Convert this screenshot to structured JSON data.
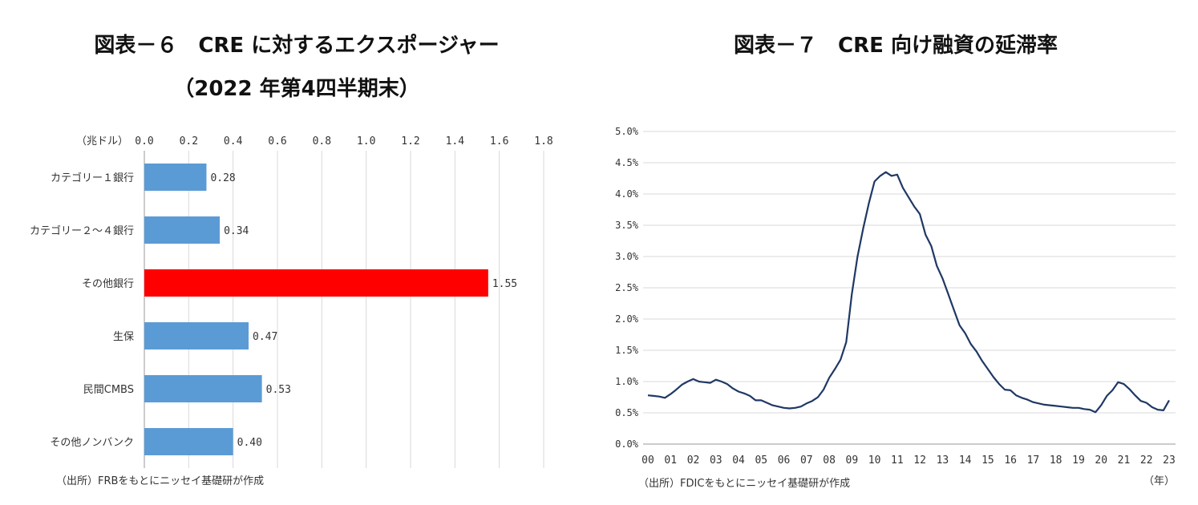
{
  "chart_data": [
    {
      "type": "bar",
      "orientation": "horizontal",
      "title": "図表－６　CRE に対するエクスポージャー",
      "subtitle": "（2022 年第4四半期末）",
      "unit_label": "（兆ドル）",
      "source": "（出所）FRBをもとにニッセイ基礎研が作成",
      "categories": [
        "カテゴリー１銀行",
        "カテゴリー２～４銀行",
        "その他銀行",
        "生保",
        "民間CMBS",
        "その他ノンバンク"
      ],
      "values": [
        0.28,
        0.34,
        1.55,
        0.47,
        0.53,
        0.4
      ],
      "value_labels": [
        "0.28",
        "0.34",
        "1.55",
        "0.47",
        "0.53",
        "0.40"
      ],
      "xlim": [
        0,
        1.8
      ],
      "x_ticks": [
        "0.0",
        "0.2",
        "0.4",
        "0.6",
        "0.8",
        "1.0",
        "1.2",
        "1.4",
        "1.6",
        "1.8"
      ],
      "x_axis_position": "top",
      "grid": "vertical",
      "colors": {
        "default": "#5b9bd5",
        "highlight": "#ff0000"
      },
      "highlight_index": 2
    },
    {
      "type": "line",
      "title": "図表－７　CRE 向け融資の延滞率",
      "source": "（出所）FDICをもとにニッセイ基礎研が作成",
      "x_unit_label": "（年）",
      "x_ticks": [
        "00",
        "01",
        "02",
        "03",
        "04",
        "05",
        "06",
        "07",
        "08",
        "09",
        "10",
        "11",
        "12",
        "13",
        "14",
        "15",
        "16",
        "17",
        "18",
        "19",
        "20",
        "21",
        "22",
        "23"
      ],
      "y_ticks": [
        "0.0%",
        "0.5%",
        "1.0%",
        "1.5%",
        "2.0%",
        "2.5%",
        "3.0%",
        "3.5%",
        "4.0%",
        "4.5%",
        "5.0%"
      ],
      "ylim": [
        0,
        5.0
      ],
      "grid": "horizontal",
      "line_color": "#1f3864",
      "series": [
        {
          "x": [
            2000.0,
            2000.25,
            2000.5,
            2000.75,
            2001.0,
            2001.25,
            2001.5,
            2001.75,
            2002.0,
            2002.25,
            2002.5,
            2002.75,
            2003.0,
            2003.25,
            2003.5,
            2003.75,
            2004.0,
            2004.25,
            2004.5,
            2004.75,
            2005.0,
            2005.25,
            2005.5,
            2005.75,
            2006.0,
            2006.25,
            2006.5,
            2006.75,
            2007.0,
            2007.25,
            2007.5,
            2007.75,
            2008.0,
            2008.25,
            2008.5,
            2008.75,
            2009.0,
            2009.25,
            2009.5,
            2009.75,
            2010.0,
            2010.25,
            2010.5,
            2010.75,
            2011.0,
            2011.25,
            2011.5,
            2011.75,
            2012.0,
            2012.25,
            2012.5,
            2012.75,
            2013.0,
            2013.25,
            2013.5,
            2013.75,
            2014.0,
            2014.25,
            2014.5,
            2014.75,
            2015.0,
            2015.25,
            2015.5,
            2015.75,
            2016.0,
            2016.25,
            2016.5,
            2016.75,
            2017.0,
            2017.25,
            2017.5,
            2017.75,
            2018.0,
            2018.25,
            2018.5,
            2018.75,
            2019.0,
            2019.25,
            2019.5,
            2019.75,
            2020.0,
            2020.25,
            2020.5,
            2020.75,
            2021.0,
            2021.25,
            2021.5,
            2021.75,
            2022.0,
            2022.25,
            2022.5,
            2022.75,
            2023.0
          ],
          "y": [
            0.78,
            0.77,
            0.76,
            0.74,
            0.8,
            0.87,
            0.95,
            1.0,
            1.04,
            1.0,
            0.99,
            0.98,
            1.03,
            1.0,
            0.96,
            0.89,
            0.84,
            0.81,
            0.77,
            0.7,
            0.7,
            0.66,
            0.62,
            0.6,
            0.58,
            0.57,
            0.58,
            0.6,
            0.65,
            0.69,
            0.75,
            0.87,
            1.06,
            1.2,
            1.35,
            1.63,
            2.4,
            3.0,
            3.45,
            3.85,
            4.2,
            4.29,
            4.35,
            4.29,
            4.31,
            4.1,
            3.95,
            3.8,
            3.68,
            3.35,
            3.17,
            2.85,
            2.65,
            2.4,
            2.15,
            1.9,
            1.77,
            1.6,
            1.48,
            1.33,
            1.2,
            1.07,
            0.96,
            0.87,
            0.86,
            0.78,
            0.74,
            0.71,
            0.67,
            0.65,
            0.63,
            0.62,
            0.61,
            0.6,
            0.59,
            0.58,
            0.58,
            0.56,
            0.55,
            0.51,
            0.62,
            0.77,
            0.86,
            0.99,
            0.96,
            0.88,
            0.78,
            0.69,
            0.66,
            0.59,
            0.55,
            0.54,
            0.7
          ]
        }
      ]
    }
  ]
}
